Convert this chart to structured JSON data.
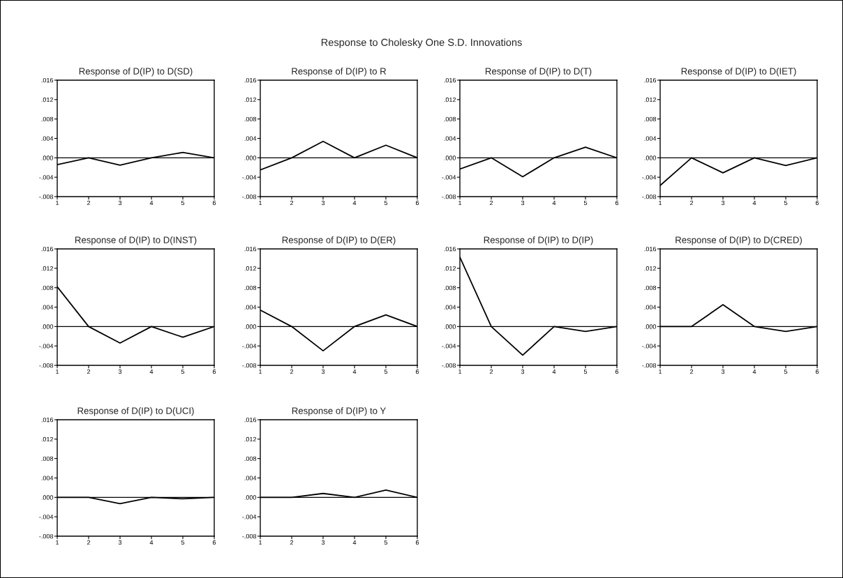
{
  "chart_data": [
    {
      "type": "line",
      "title": "Response of D(IP) to D(SD)",
      "annotations": [
        "Response to Cholesky One S.D. Innovations"
      ],
      "x": [
        1,
        2,
        3,
        4,
        5,
        6
      ],
      "series": [
        {
          "color": "#000000",
          "values": [
            -0.0014,
            0,
            -0.0015,
            0,
            0.0011,
            0
          ]
        }
      ],
      "xlim": [
        1,
        6
      ],
      "xticks": [
        1,
        2,
        3,
        4,
        5,
        6
      ],
      "ylim": [
        -0.008,
        0.016
      ],
      "yticks": [
        {
          "value": -0.008,
          "label": "-.008"
        },
        {
          "value": -0.004,
          "label": "-.004"
        },
        {
          "value": 0,
          "label": ".000"
        },
        {
          "value": 0.004,
          "label": ".004"
        },
        {
          "value": 0.008,
          "label": ".008"
        },
        {
          "value": 0.012,
          "label": ".012"
        },
        {
          "value": 0.016,
          "label": ".016"
        }
      ],
      "ref_lines": [
        {
          "axis": "y",
          "value": 0,
          "color": "#000000"
        }
      ],
      "grid": false
    },
    {
      "type": "line",
      "title": "Response of D(IP) to R",
      "x": [
        1,
        2,
        3,
        4,
        5,
        6
      ],
      "series": [
        {
          "color": "#000000",
          "values": [
            -0.0025,
            0,
            0.0034,
            0,
            0.0026,
            0
          ]
        }
      ],
      "xlim": [
        1,
        6
      ],
      "xticks": [
        1,
        2,
        3,
        4,
        5,
        6
      ],
      "ylim": [
        -0.008,
        0.016
      ],
      "yticks": [
        {
          "value": -0.008,
          "label": "-.008"
        },
        {
          "value": -0.004,
          "label": "-.004"
        },
        {
          "value": 0,
          "label": ".000"
        },
        {
          "value": 0.004,
          "label": ".004"
        },
        {
          "value": 0.008,
          "label": ".008"
        },
        {
          "value": 0.012,
          "label": ".012"
        },
        {
          "value": 0.016,
          "label": ".016"
        }
      ],
      "ref_lines": [
        {
          "axis": "y",
          "value": 0,
          "color": "#000000"
        }
      ],
      "grid": false
    },
    {
      "type": "line",
      "title": "Response of D(IP) to D(T)",
      "x": [
        1,
        2,
        3,
        4,
        5,
        6
      ],
      "series": [
        {
          "color": "#000000",
          "values": [
            -0.0023,
            0,
            -0.0039,
            0,
            0.0022,
            0
          ]
        }
      ],
      "xlim": [
        1,
        6
      ],
      "xticks": [
        1,
        2,
        3,
        4,
        5,
        6
      ],
      "ylim": [
        -0.008,
        0.016
      ],
      "yticks": [
        {
          "value": -0.008,
          "label": "-.008"
        },
        {
          "value": -0.004,
          "label": "-.004"
        },
        {
          "value": 0,
          "label": ".000"
        },
        {
          "value": 0.004,
          "label": ".004"
        },
        {
          "value": 0.008,
          "label": ".008"
        },
        {
          "value": 0.012,
          "label": ".012"
        },
        {
          "value": 0.016,
          "label": ".016"
        }
      ],
      "ref_lines": [
        {
          "axis": "y",
          "value": 0,
          "color": "#000000"
        }
      ],
      "grid": false
    },
    {
      "type": "line",
      "title": "Response of D(IP) to D(IET)",
      "x": [
        1,
        2,
        3,
        4,
        5,
        6
      ],
      "series": [
        {
          "color": "#000000",
          "values": [
            -0.0057,
            0,
            -0.0031,
            0,
            -0.0016,
            0
          ]
        }
      ],
      "xlim": [
        1,
        6
      ],
      "xticks": [
        1,
        2,
        3,
        4,
        5,
        6
      ],
      "ylim": [
        -0.008,
        0.016
      ],
      "yticks": [
        {
          "value": -0.008,
          "label": "-.008"
        },
        {
          "value": -0.004,
          "label": "-.004"
        },
        {
          "value": 0,
          "label": ".000"
        },
        {
          "value": 0.004,
          "label": ".004"
        },
        {
          "value": 0.008,
          "label": ".008"
        },
        {
          "value": 0.012,
          "label": ".012"
        },
        {
          "value": 0.016,
          "label": ".016"
        }
      ],
      "ref_lines": [
        {
          "axis": "y",
          "value": 0,
          "color": "#000000"
        }
      ],
      "grid": false
    },
    {
      "type": "line",
      "title": "Response of D(IP) to D(INST)",
      "x": [
        1,
        2,
        3,
        4,
        5,
        6
      ],
      "series": [
        {
          "color": "#000000",
          "values": [
            0.0082,
            0,
            -0.0034,
            0,
            -0.0022,
            0
          ]
        }
      ],
      "xlim": [
        1,
        6
      ],
      "xticks": [
        1,
        2,
        3,
        4,
        5,
        6
      ],
      "ylim": [
        -0.008,
        0.016
      ],
      "yticks": [
        {
          "value": -0.008,
          "label": "-.008"
        },
        {
          "value": -0.004,
          "label": "-.004"
        },
        {
          "value": 0,
          "label": ".000"
        },
        {
          "value": 0.004,
          "label": ".004"
        },
        {
          "value": 0.008,
          "label": ".008"
        },
        {
          "value": 0.012,
          "label": ".012"
        },
        {
          "value": 0.016,
          "label": ".016"
        }
      ],
      "ref_lines": [
        {
          "axis": "y",
          "value": 0,
          "color": "#000000"
        }
      ],
      "grid": false
    },
    {
      "type": "line",
      "title": "Response of D(IP) to D(ER)",
      "x": [
        1,
        2,
        3,
        4,
        5,
        6
      ],
      "series": [
        {
          "color": "#000000",
          "values": [
            0.0034,
            0,
            -0.005,
            0,
            0.0024,
            0
          ]
        }
      ],
      "xlim": [
        1,
        6
      ],
      "xticks": [
        1,
        2,
        3,
        4,
        5,
        6
      ],
      "ylim": [
        -0.008,
        0.016
      ],
      "yticks": [
        {
          "value": -0.008,
          "label": "-.008"
        },
        {
          "value": -0.004,
          "label": "-.004"
        },
        {
          "value": 0,
          "label": ".000"
        },
        {
          "value": 0.004,
          "label": ".004"
        },
        {
          "value": 0.008,
          "label": ".008"
        },
        {
          "value": 0.012,
          "label": ".012"
        },
        {
          "value": 0.016,
          "label": ".016"
        }
      ],
      "ref_lines": [
        {
          "axis": "y",
          "value": 0,
          "color": "#000000"
        }
      ],
      "grid": false
    },
    {
      "type": "line",
      "title": "Response of D(IP) to D(IP)",
      "x": [
        1,
        2,
        3,
        4,
        5,
        6
      ],
      "series": [
        {
          "color": "#000000",
          "values": [
            0.0143,
            0,
            -0.0059,
            0,
            -0.001,
            0
          ]
        }
      ],
      "xlim": [
        1,
        6
      ],
      "xticks": [
        1,
        2,
        3,
        4,
        5,
        6
      ],
      "ylim": [
        -0.008,
        0.016
      ],
      "yticks": [
        {
          "value": -0.008,
          "label": "-.008"
        },
        {
          "value": -0.004,
          "label": "-.004"
        },
        {
          "value": 0,
          "label": ".000"
        },
        {
          "value": 0.004,
          "label": ".004"
        },
        {
          "value": 0.008,
          "label": ".008"
        },
        {
          "value": 0.012,
          "label": ".012"
        },
        {
          "value": 0.016,
          "label": ".016"
        }
      ],
      "ref_lines": [
        {
          "axis": "y",
          "value": 0,
          "color": "#000000"
        }
      ],
      "grid": false
    },
    {
      "type": "line",
      "title": "Response of D(IP) to D(CRED)",
      "x": [
        1,
        2,
        3,
        4,
        5,
        6
      ],
      "series": [
        {
          "color": "#000000",
          "values": [
            0,
            0,
            0.0045,
            0,
            -0.001,
            0
          ]
        }
      ],
      "xlim": [
        1,
        6
      ],
      "xticks": [
        1,
        2,
        3,
        4,
        5,
        6
      ],
      "ylim": [
        -0.008,
        0.016
      ],
      "yticks": [
        {
          "value": -0.008,
          "label": "-.008"
        },
        {
          "value": -0.004,
          "label": "-.004"
        },
        {
          "value": 0,
          "label": ".000"
        },
        {
          "value": 0.004,
          "label": ".004"
        },
        {
          "value": 0.008,
          "label": ".008"
        },
        {
          "value": 0.012,
          "label": ".012"
        },
        {
          "value": 0.016,
          "label": ".016"
        }
      ],
      "ref_lines": [
        {
          "axis": "y",
          "value": 0,
          "color": "#000000"
        }
      ],
      "grid": false
    },
    {
      "type": "line",
      "title": "Response of D(IP) to D(UCI)",
      "x": [
        1,
        2,
        3,
        4,
        5,
        6
      ],
      "series": [
        {
          "color": "#000000",
          "values": [
            0,
            0,
            -0.0013,
            0,
            -0.0003,
            0
          ]
        }
      ],
      "xlim": [
        1,
        6
      ],
      "xticks": [
        1,
        2,
        3,
        4,
        5,
        6
      ],
      "ylim": [
        -0.008,
        0.016
      ],
      "yticks": [
        {
          "value": -0.008,
          "label": "-.008"
        },
        {
          "value": -0.004,
          "label": "-.004"
        },
        {
          "value": 0,
          "label": ".000"
        },
        {
          "value": 0.004,
          "label": ".004"
        },
        {
          "value": 0.008,
          "label": ".008"
        },
        {
          "value": 0.012,
          "label": ".012"
        },
        {
          "value": 0.016,
          "label": ".016"
        }
      ],
      "ref_lines": [
        {
          "axis": "y",
          "value": 0,
          "color": "#000000"
        }
      ],
      "grid": false
    },
    {
      "type": "line",
      "title": "Response of D(IP) to Y",
      "x": [
        1,
        2,
        3,
        4,
        5,
        6
      ],
      "series": [
        {
          "color": "#000000",
          "values": [
            0,
            0,
            0.0008,
            0,
            0.0015,
            0
          ]
        }
      ],
      "xlim": [
        1,
        6
      ],
      "xticks": [
        1,
        2,
        3,
        4,
        5,
        6
      ],
      "ylim": [
        -0.008,
        0.016
      ],
      "yticks": [
        {
          "value": -0.008,
          "label": "-.008"
        },
        {
          "value": -0.004,
          "label": "-.004"
        },
        {
          "value": 0,
          "label": ".000"
        },
        {
          "value": 0.004,
          "label": ".004"
        },
        {
          "value": 0.008,
          "label": ".008"
        },
        {
          "value": 0.012,
          "label": ".012"
        },
        {
          "value": 0.016,
          "label": ".016"
        }
      ],
      "ref_lines": [
        {
          "axis": "y",
          "value": 0,
          "color": "#000000"
        }
      ],
      "grid": false
    }
  ]
}
